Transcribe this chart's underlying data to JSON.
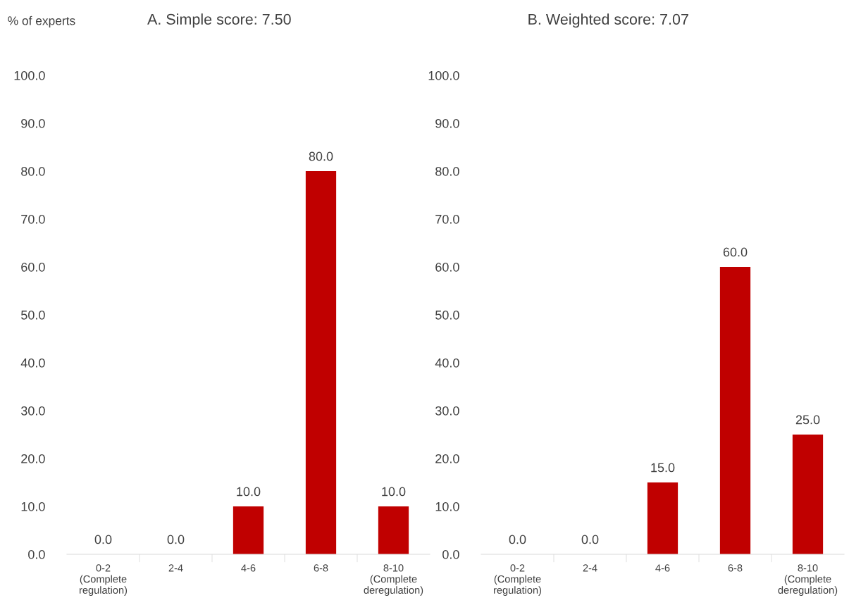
{
  "chart_data": [
    {
      "type": "bar",
      "title": "A. Simple score: 7.50",
      "ylabel": "% of experts",
      "categories": [
        "0-2\n(Complete\nregulation)",
        "2-4",
        "4-6",
        "6-8",
        "8-10\n(Complete\nderegulation)"
      ],
      "values": [
        0,
        0,
        10,
        80,
        10
      ],
      "value_labels": [
        "0.0",
        "0.0",
        "10.0",
        "80.0",
        "10.0"
      ],
      "color": "#c00000",
      "ylim": [
        0,
        100
      ],
      "yticks": [
        {
          "value": 0,
          "label": "0.0"
        },
        {
          "value": 10,
          "label": "10.0"
        },
        {
          "value": 20,
          "label": "20.0"
        },
        {
          "value": 30,
          "label": "30.0"
        },
        {
          "value": 40,
          "label": "40.0"
        },
        {
          "value": 50,
          "label": "50.0"
        },
        {
          "value": 60,
          "label": "60.0"
        },
        {
          "value": 70,
          "label": "70.0"
        },
        {
          "value": 80,
          "label": "80.0"
        },
        {
          "value": 90,
          "label": "90.0"
        },
        {
          "value": 100,
          "label": "100.0"
        }
      ],
      "grid": false,
      "legend": false
    },
    {
      "type": "bar",
      "title": "B. Weighted score: 7.07",
      "categories": [
        "0-2\n(Complete\nregulation)",
        "2-4",
        "4-6",
        "6-8",
        "8-10\n(Complete\nderegulation)"
      ],
      "values": [
        0,
        0,
        15,
        60,
        25
      ],
      "value_labels": [
        "0.0",
        "0.0",
        "15.0",
        "60.0",
        "25.0"
      ],
      "color": "#c00000",
      "ylim": [
        0,
        100
      ],
      "yticks": [
        {
          "value": 0,
          "label": "0.0"
        },
        {
          "value": 10,
          "label": "10.0"
        },
        {
          "value": 20,
          "label": "20.0"
        },
        {
          "value": 30,
          "label": "30.0"
        },
        {
          "value": 40,
          "label": "40.0"
        },
        {
          "value": 50,
          "label": "50.0"
        },
        {
          "value": 60,
          "label": "60.0"
        },
        {
          "value": 70,
          "label": "70.0"
        },
        {
          "value": 80,
          "label": "80.0"
        },
        {
          "value": 90,
          "label": "90.0"
        },
        {
          "value": 100,
          "label": "100.0"
        }
      ],
      "grid": false,
      "legend": false
    }
  ]
}
